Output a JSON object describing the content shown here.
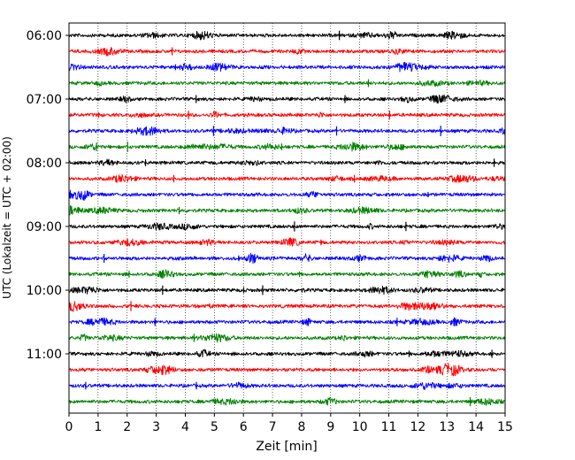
{
  "chart_data": {
    "type": "line",
    "title": "",
    "xlabel": "Zeit  [min]",
    "ylabel": "UTC (Lokalzeit = UTC + 02:00)",
    "xlim": [
      0,
      15
    ],
    "x_ticks": [
      "0",
      "1",
      "2",
      "3",
      "4",
      "5",
      "6",
      "7",
      "8",
      "9",
      "10",
      "11",
      "12",
      "13",
      "14",
      "15"
    ],
    "y_ticks": [
      "06:00",
      "07:00",
      "08:00",
      "09:00",
      "10:00",
      "11:00"
    ],
    "grid": "vertical dotted lines at each minute",
    "trace_interval_minutes": 15,
    "color_cycle": [
      "#000000",
      "#ff0000",
      "#0000ff",
      "#008000"
    ],
    "traces": [
      {
        "start": "06:00",
        "color": "#000000"
      },
      {
        "start": "06:15",
        "color": "#ff0000"
      },
      {
        "start": "06:30",
        "color": "#0000ff"
      },
      {
        "start": "06:45",
        "color": "#008000"
      },
      {
        "start": "07:00",
        "color": "#000000"
      },
      {
        "start": "07:15",
        "color": "#ff0000"
      },
      {
        "start": "07:30",
        "color": "#0000ff"
      },
      {
        "start": "07:45",
        "color": "#008000"
      },
      {
        "start": "08:00",
        "color": "#000000"
      },
      {
        "start": "08:15",
        "color": "#ff0000"
      },
      {
        "start": "08:30",
        "color": "#0000ff"
      },
      {
        "start": "08:45",
        "color": "#008000"
      },
      {
        "start": "09:00",
        "color": "#000000"
      },
      {
        "start": "09:15",
        "color": "#ff0000"
      },
      {
        "start": "09:30",
        "color": "#0000ff"
      },
      {
        "start": "09:45",
        "color": "#008000"
      },
      {
        "start": "10:00",
        "color": "#000000"
      },
      {
        "start": "10:15",
        "color": "#ff0000"
      },
      {
        "start": "10:30",
        "color": "#0000ff"
      },
      {
        "start": "10:45",
        "color": "#008000"
      },
      {
        "start": "11:00",
        "color": "#000000"
      },
      {
        "start": "11:15",
        "color": "#ff0000"
      },
      {
        "start": "11:30",
        "color": "#0000ff"
      },
      {
        "start": "11:45",
        "color": "#008000"
      }
    ]
  }
}
